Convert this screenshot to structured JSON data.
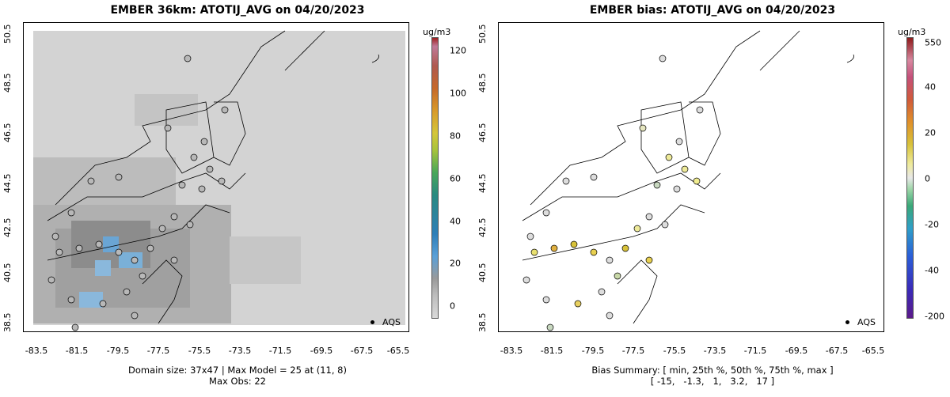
{
  "left": {
    "title": "EMBER 36km: ATOTIJ_AVG on 04/20/2023",
    "footer_line1": "Domain size: 37x47 | Max Model = 25 at (11, 8)",
    "footer_line2": "Max Obs: 22",
    "colorbar": {
      "unit": "ug/m3",
      "labels": [
        "120",
        "100",
        "80",
        "60",
        "40",
        "20",
        "0"
      ],
      "colors": [
        "#d9d9d9",
        "#bdbdbd",
        "#9a9a9a",
        "#5aa0d8",
        "#2f7fb8",
        "#2a8a80",
        "#4aa858",
        "#a8c43c",
        "#d4c63a",
        "#d89a2a",
        "#c6692a",
        "#b05a50",
        "#c07a98"
      ]
    },
    "legend_label": "AQS"
  },
  "right": {
    "title": "EMBER bias: ATOTIJ_AVG on 04/20/2023",
    "footer_line1": "Bias Summary: [ min, 25th %, 50th %, 75th %, max ]",
    "footer_line2": "[ -15,   -1.3,   1,   3.2,   17 ]",
    "colorbar": {
      "unit": "ug/m3",
      "labels": [
        "550",
        "40",
        "20",
        "0",
        "-20",
        "-40",
        "-200"
      ],
      "colors": [
        "#5b1a8a",
        "#3a2ab8",
        "#2a5ed8",
        "#2f9fc8",
        "#3aa878",
        "#9ed6a8",
        "#e8e8e8",
        "#eeea9a",
        "#d8c23a",
        "#e0902a",
        "#d05a3a",
        "#c4507a",
        "#d888a0",
        "#8e1a1a"
      ]
    },
    "legend_label": "AQS"
  },
  "axes": {
    "x_ticks": [
      "-83.5",
      "-81.5",
      "-79.5",
      "-77.5",
      "-75.5",
      "-73.5",
      "-71.5",
      "-69.5",
      "-67.5",
      "-65.5"
    ],
    "y_ticks": [
      "38.5",
      "40.5",
      "42.5",
      "44.5",
      "46.5",
      "48.5",
      "50.5"
    ]
  }
}
